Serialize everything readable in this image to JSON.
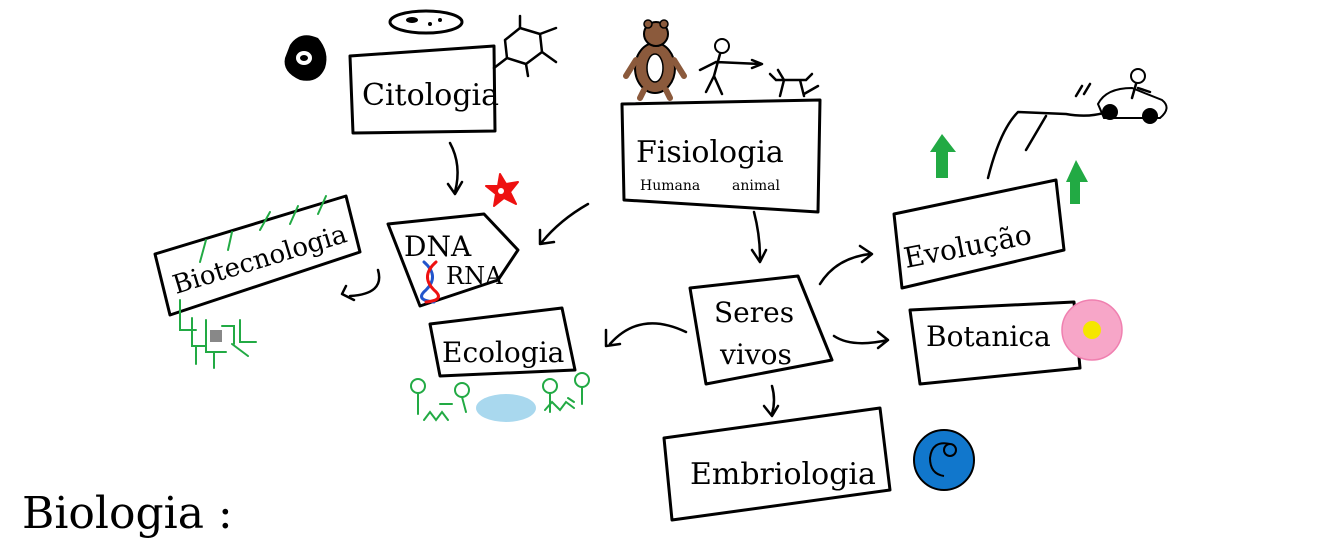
{
  "title": "Biologia :",
  "nodes": {
    "citologia": "Citologia",
    "fisiologia": "Fisiologia",
    "fisiologia_sub_1": "Humana",
    "fisiologia_sub_2": "animal",
    "biotecnologia": "Biotecnologia",
    "dna": "DNA",
    "rna": "RNA",
    "evolucao": "Evolução",
    "botanica": "Botanica",
    "ecologia": "Ecologia",
    "seres_vivos_1": "Seres",
    "seres_vivos_2": "vivos",
    "embriologia": "Embriologia"
  },
  "colors": {
    "green": "#22aa44",
    "red": "#ee1111",
    "pink": "#f7a6c8",
    "yellow": "#f5e600",
    "blue": "#1177cc",
    "light_blue": "#a9d8ee",
    "brown": "#8b5a3c",
    "ink": "#000000"
  },
  "icons": [
    "cell-icon",
    "organelle-icon",
    "molecule-icon",
    "bear-icon",
    "running-person-icon",
    "dog-icon",
    "flower-icon",
    "dna-helix-icon",
    "circuit-icon",
    "mushroom-icon",
    "lake-icon",
    "green-arrow-icon",
    "roller-coaster-icon",
    "blossom-icon",
    "embryo-icon"
  ]
}
